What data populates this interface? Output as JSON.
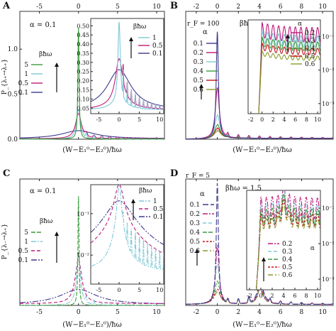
{
  "panels": [
    {
      "letter": "A",
      "top_axis_labels": [
        "-5",
        "0",
        "5",
        "10"
      ],
      "bottom_axis_labels": [
        "-5",
        "0",
        "5",
        "10"
      ],
      "y_axis_labels": [
        "0.0",
        "0.5",
        "1.0"
      ],
      "ylabel": "P_{λ₊→λ₊}",
      "xlabel": "(W−E₁⁰−E₂⁰)/ħω",
      "alpha_text": "α = 0.1",
      "legend_title": "βħω",
      "legend": [
        "5",
        "1",
        "0.5",
        "0.1"
      ],
      "inset": {
        "y_labels": [
          "0.50",
          "0.45",
          "0.40",
          "0.35",
          "0.30",
          "0.25",
          "0.20",
          "0.15",
          "0.10",
          "0.05"
        ],
        "x_labels": [
          "-5",
          "0",
          "5",
          "10"
        ],
        "legend_title": "βħω",
        "legend": [
          "1",
          "0.5",
          "0.1"
        ]
      }
    },
    {
      "letter": "B",
      "top_axis_labels": [
        "-2",
        "0",
        "2",
        "4",
        "6",
        "8",
        "10"
      ],
      "bottom_axis_labels": [
        "-2",
        "0",
        "2",
        "4",
        "6",
        "8",
        "10"
      ],
      "rf_label": "r_F = 100",
      "beta_text": "βħω = 1.5",
      "xlabel": "(W−E₁⁰−E₂⁰)/ħω",
      "legend_title": "α",
      "legend": [
        "0.1",
        "0.2",
        "0.3",
        "0.4",
        "0.5",
        "0.6"
      ],
      "inset": {
        "y_labels": [
          "10⁻¹",
          "10⁻²",
          "10⁻³"
        ],
        "x_labels": [
          "-2",
          "0",
          "2",
          "4",
          "6",
          "8",
          "10"
        ],
        "legend_title": "α",
        "legend": [
          "0.2",
          "0.3",
          "0.4",
          "0.5",
          "0.6"
        ]
      }
    },
    {
      "letter": "C",
      "bottom_axis_labels": [
        "-5",
        "0",
        "5",
        "10"
      ],
      "ylabel": "P_{λ₋→λ₊}",
      "xlabel": "(W−E₁⁰−E₂⁰)/ħω",
      "alpha_text": "α = 0.1",
      "legend_title": "βħω",
      "legend": [
        "5",
        "1",
        "0.5",
        "0.1"
      ],
      "inset": {
        "y_labels": [
          "10⁻¹",
          "10⁻²"
        ],
        "x_labels": [
          "-5",
          "0",
          "5",
          "10"
        ],
        "legend_title": "βħω",
        "legend": [
          "1",
          "0.5",
          "0.1"
        ]
      }
    },
    {
      "letter": "D",
      "bottom_axis_labels": [
        "-2",
        "0",
        "2",
        "4",
        "6",
        "8",
        "10"
      ],
      "rf_label": "r_F = 5",
      "beta_text": "βħω = 1.5",
      "xlabel": "(W−E₁⁰−E₂⁰)/ħω",
      "legend_title": "α",
      "legend": [
        "0.1",
        "0.2",
        "0.3",
        "0.4",
        "0.5",
        "0.6"
      ],
      "inset": {
        "y_labels": [
          "10⁻¹",
          "10⁻²",
          "10⁻³"
        ],
        "x_labels": [
          "-2",
          "0",
          "2",
          "4",
          "6",
          "8",
          "10"
        ],
        "legend_title": "α",
        "legend": [
          "0.2",
          "0.3",
          "0.4",
          "0.5",
          "0.6"
        ]
      }
    }
  ],
  "colors": {
    "beta_5": "#3a9a3a",
    "beta_1": "#7fc8d8",
    "beta_0_5": "#c0197a",
    "beta_0_1": "#3b3a8c",
    "alpha_0_1": "#3b3a8c",
    "alpha_0_2": "#c0197a",
    "alpha_0_3": "#7fc8d8",
    "alpha_0_4": "#3a9a3a",
    "alpha_0_5": "#c0121a",
    "alpha_0_6": "#8a9a2a"
  },
  "chart_data": [
    {
      "panel": "A",
      "type": "line",
      "xlim": [
        -7.5,
        11
      ],
      "ylim": [
        0,
        1.42
      ],
      "series": [
        {
          "name": "5",
          "x": [
            -7.5,
            -0.4,
            -0.15,
            0,
            0.15,
            0.4,
            11
          ],
          "y": [
            0,
            0.01,
            0.2,
            1.25,
            0.2,
            0.01,
            0
          ]
        },
        {
          "name": "1",
          "x": [
            -7.5,
            -1,
            0,
            1,
            2,
            3,
            4,
            5,
            6,
            11
          ],
          "y": [
            0,
            0.02,
            0.35,
            0.04,
            0.09,
            0.03,
            0.07,
            0.02,
            0.05,
            0
          ]
        },
        {
          "name": "0.5",
          "x": [
            -7.5,
            -1,
            0,
            1,
            2,
            3,
            4,
            11
          ],
          "y": [
            0,
            0.03,
            0.3,
            0.06,
            0.07,
            0.04,
            0.05,
            0
          ]
        },
        {
          "name": "0.1",
          "x": [
            -7.5,
            -3,
            0,
            3,
            6,
            11
          ],
          "y": [
            0,
            0.02,
            0.09,
            0.04,
            0.02,
            0
          ]
        }
      ]
    },
    {
      "panel": "B",
      "type": "line",
      "xlim": [
        -3,
        11
      ],
      "ylim": [
        0,
        1.45
      ],
      "series": [
        {
          "name": "0.1",
          "x": [
            -3,
            -0.5,
            0,
            0.5,
            3
          ],
          "y": [
            0,
            0.03,
            1.2,
            0.03,
            0
          ]
        },
        {
          "name": "0.2",
          "x": [
            -3,
            0,
            1,
            2,
            4,
            11
          ],
          "y": [
            0,
            0.58,
            0.1,
            0.06,
            0.04,
            0
          ]
        },
        {
          "name": "0.3",
          "x": [
            -3,
            0,
            1,
            2,
            4,
            11
          ],
          "y": [
            0,
            0.27,
            0.08,
            0.05,
            0.04,
            0
          ]
        },
        {
          "name": "0.4",
          "x": [
            -3,
            0,
            1,
            2,
            4,
            11
          ],
          "y": [
            0,
            0.16,
            0.07,
            0.05,
            0.04,
            0
          ]
        },
        {
          "name": "0.5",
          "x": [
            -3,
            0,
            1,
            2,
            4,
            11
          ],
          "y": [
            0,
            0.12,
            0.07,
            0.05,
            0.04,
            0
          ]
        },
        {
          "name": "0.6",
          "x": [
            -3,
            0,
            1,
            2,
            4,
            11
          ],
          "y": [
            0,
            0.09,
            0.06,
            0.04,
            0.03,
            0
          ]
        }
      ]
    },
    {
      "panel": "C",
      "type": "line",
      "xlim": [
        -7.5,
        11
      ],
      "ylim": [
        0,
        1.42
      ],
      "series": [
        {
          "name": "5",
          "x": [
            -7.5,
            -0.4,
            0,
            0.4,
            11
          ],
          "y": [
            0,
            0.02,
            1.25,
            0.02,
            0
          ]
        },
        {
          "name": "1",
          "x": [
            -7.5,
            -1,
            0,
            1,
            2,
            3,
            11
          ],
          "y": [
            0,
            0.05,
            0.58,
            0.05,
            0.12,
            0.03,
            0
          ]
        },
        {
          "name": "0.5",
          "x": [
            -7.5,
            -2,
            0,
            2,
            5,
            11
          ],
          "y": [
            0,
            0.04,
            0.5,
            0.06,
            0.03,
            0
          ]
        },
        {
          "name": "0.1",
          "x": [
            -7.5,
            -3,
            0,
            3,
            6,
            11
          ],
          "y": [
            0,
            0.04,
            0.17,
            0.08,
            0.04,
            0
          ]
        }
      ]
    },
    {
      "panel": "D",
      "type": "line",
      "xlim": [
        -3,
        11
      ],
      "ylim": [
        0,
        1.25
      ],
      "series": [
        {
          "name": "0.1",
          "x": [
            -3,
            -0.5,
            0,
            0.5,
            2,
            4,
            11
          ],
          "y": [
            0,
            0.05,
            1.2,
            0.08,
            0.02,
            0.22,
            0
          ]
        },
        {
          "name": "0.2",
          "x": [
            -3,
            0,
            1,
            2,
            4,
            11
          ],
          "y": [
            0,
            0.58,
            0.1,
            0.08,
            0.18,
            0
          ]
        },
        {
          "name": "0.3",
          "x": [
            -3,
            0,
            1,
            2,
            4,
            11
          ],
          "y": [
            0,
            0.4,
            0.1,
            0.08,
            0.16,
            0
          ]
        },
        {
          "name": "0.4",
          "x": [
            -3,
            0,
            1,
            2,
            4,
            11
          ],
          "y": [
            0,
            0.23,
            0.09,
            0.07,
            0.15,
            0
          ]
        },
        {
          "name": "0.5",
          "x": [
            -3,
            0,
            1,
            2,
            4,
            11
          ],
          "y": [
            0,
            0.15,
            0.08,
            0.06,
            0.14,
            0
          ]
        },
        {
          "name": "0.6",
          "x": [
            -3,
            0,
            1,
            2,
            4,
            11
          ],
          "y": [
            0,
            0.12,
            0.07,
            0.05,
            0.13,
            0
          ]
        }
      ]
    }
  ]
}
